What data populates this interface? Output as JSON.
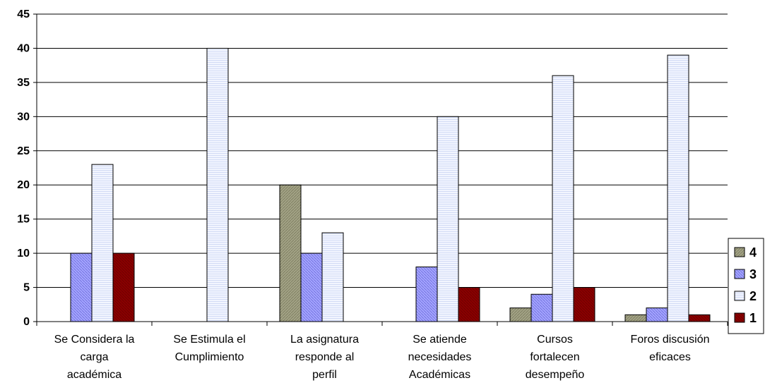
{
  "chart_data": {
    "type": "bar",
    "title": "",
    "xlabel": "",
    "ylabel": "",
    "ylim": [
      0,
      45
    ],
    "yticks": [
      0,
      5,
      10,
      15,
      20,
      25,
      30,
      35,
      40,
      45
    ],
    "grid": true,
    "legend_position": "right",
    "categories": [
      [
        "Se Considera la",
        "carga",
        "académica"
      ],
      [
        "Se Estimula el",
        "Cumplimiento"
      ],
      [
        "La asignatura",
        "responde al",
        "perfil"
      ],
      [
        "Se atiende",
        "necesidades",
        "Académicas"
      ],
      [
        "Cursos",
        "fortalecen",
        "desempeño"
      ],
      [
        "Foros discusión",
        "eficaces"
      ]
    ],
    "series": [
      {
        "name": "4",
        "color": "#9c9c7c",
        "values": [
          0,
          0,
          20,
          0,
          2,
          1
        ]
      },
      {
        "name": "3",
        "color": "#9999ff",
        "values": [
          10,
          0,
          10,
          8,
          4,
          2
        ]
      },
      {
        "name": "2",
        "color": "#e8eefc",
        "values": [
          23,
          40,
          13,
          30,
          36,
          39
        ]
      },
      {
        "name": "1",
        "color": "#8b0000",
        "values": [
          10,
          0,
          0,
          5,
          5,
          1
        ]
      }
    ],
    "legend_order": [
      "4",
      "3",
      "2",
      "1"
    ]
  }
}
